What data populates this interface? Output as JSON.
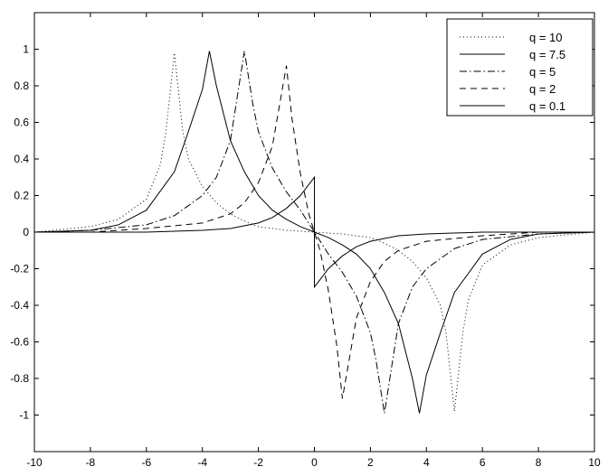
{
  "chart_data": {
    "type": "line",
    "title": "",
    "xlabel": "",
    "ylabel": "",
    "xlim": [
      -10,
      10
    ],
    "ylim": [
      -1.2,
      1.2
    ],
    "x_ticks": [
      "-10",
      "-8",
      "-6",
      "-4",
      "-2",
      "0",
      "2",
      "4",
      "6",
      "8",
      "10"
    ],
    "y_ticks": [
      "-1",
      "-0.8",
      "-0.6",
      "-0.4",
      "-0.2",
      "0",
      "0.2",
      "0.4",
      "0.6",
      "0.8",
      "1"
    ],
    "grid": false,
    "legend_position": "top-right",
    "series": [
      {
        "name": "q = 10",
        "style": "dotted",
        "color": "#000000",
        "x": [
          -10,
          -8,
          -7,
          -6,
          -5.5,
          -5.3,
          -5.0,
          -4.7,
          -4.5,
          -4.0,
          -3.5,
          -3.0,
          -2.5,
          -2.0,
          -1.0,
          0,
          1.0,
          2.0,
          2.5,
          3.0,
          3.5,
          4.0,
          4.5,
          4.7,
          5.0,
          5.3,
          5.5,
          6.0,
          7.0,
          8.0,
          10
        ],
        "y": [
          0.0,
          0.03,
          0.07,
          0.18,
          0.37,
          0.55,
          0.98,
          0.55,
          0.4,
          0.25,
          0.16,
          0.1,
          0.06,
          0.03,
          0.01,
          0.0,
          -0.01,
          -0.03,
          -0.06,
          -0.1,
          -0.16,
          -0.25,
          -0.4,
          -0.55,
          -0.98,
          -0.55,
          -0.37,
          -0.18,
          -0.07,
          -0.03,
          0.0
        ]
      },
      {
        "name": "q = 7.5",
        "style": "solid",
        "color": "#000000",
        "x": [
          -10,
          -8,
          -7,
          -6,
          -5,
          -4.5,
          -4.0,
          -3.75,
          -3.5,
          -3.0,
          -2.5,
          -2.0,
          -1.5,
          -1.0,
          -0.5,
          0,
          0.5,
          1.0,
          1.5,
          2.0,
          2.5,
          3.0,
          3.5,
          3.75,
          4.0,
          4.5,
          5,
          6,
          7,
          8,
          10
        ],
        "y": [
          0.0,
          0.01,
          0.04,
          0.12,
          0.33,
          0.55,
          0.78,
          0.99,
          0.8,
          0.5,
          0.33,
          0.2,
          0.12,
          0.07,
          0.03,
          0.0,
          -0.03,
          -0.07,
          -0.12,
          -0.2,
          -0.33,
          -0.5,
          -0.8,
          -0.99,
          -0.78,
          -0.55,
          -0.33,
          -0.12,
          -0.04,
          -0.01,
          0.0
        ]
      },
      {
        "name": "q = 5",
        "style": "dashdot",
        "color": "#000000",
        "x": [
          -10,
          -8,
          -6,
          -5,
          -4,
          -3.5,
          -3.0,
          -2.5,
          -2.2,
          -2.0,
          -1.5,
          -1.0,
          -0.5,
          0,
          0.5,
          1.0,
          1.5,
          2.0,
          2.2,
          2.5,
          3.0,
          3.5,
          4,
          5,
          6,
          8,
          10
        ],
        "y": [
          0.0,
          0.01,
          0.04,
          0.09,
          0.2,
          0.3,
          0.5,
          0.99,
          0.7,
          0.55,
          0.35,
          0.22,
          0.12,
          0.0,
          -0.12,
          -0.22,
          -0.35,
          -0.55,
          -0.7,
          -0.99,
          -0.5,
          -0.3,
          -0.2,
          -0.09,
          -0.04,
          -0.01,
          0.0
        ]
      },
      {
        "name": "q = 2",
        "style": "dashed",
        "color": "#000000",
        "x": [
          -10,
          -8,
          -6,
          -4,
          -3,
          -2.5,
          -2.0,
          -1.5,
          -1.0,
          -0.8,
          -0.5,
          -0.2,
          0,
          0.2,
          0.5,
          0.8,
          1.0,
          1.5,
          2.0,
          2.5,
          3,
          4,
          6,
          8,
          10
        ],
        "y": [
          0.0,
          0.0,
          0.02,
          0.05,
          0.1,
          0.16,
          0.27,
          0.47,
          0.91,
          0.62,
          0.32,
          0.1,
          0.0,
          -0.1,
          -0.32,
          -0.62,
          -0.91,
          -0.47,
          -0.27,
          -0.16,
          -0.1,
          -0.05,
          -0.02,
          0.0,
          0.0
        ]
      },
      {
        "name": "q = 0.1",
        "style": "solid",
        "color": "#000000",
        "x": [
          -10,
          -8,
          -6,
          -4,
          -3,
          -2,
          -1.5,
          -1,
          -0.5,
          -0.2,
          0,
          0.0001,
          0.2,
          0.5,
          1,
          1.5,
          2,
          3,
          4,
          6,
          8,
          10
        ],
        "y": [
          0.0,
          0.0,
          0.0,
          0.01,
          0.02,
          0.05,
          0.08,
          0.13,
          0.2,
          0.26,
          0.3,
          -0.3,
          -0.26,
          -0.2,
          -0.13,
          -0.08,
          -0.05,
          -0.02,
          -0.01,
          0.0,
          0.0,
          0.0
        ]
      }
    ]
  }
}
